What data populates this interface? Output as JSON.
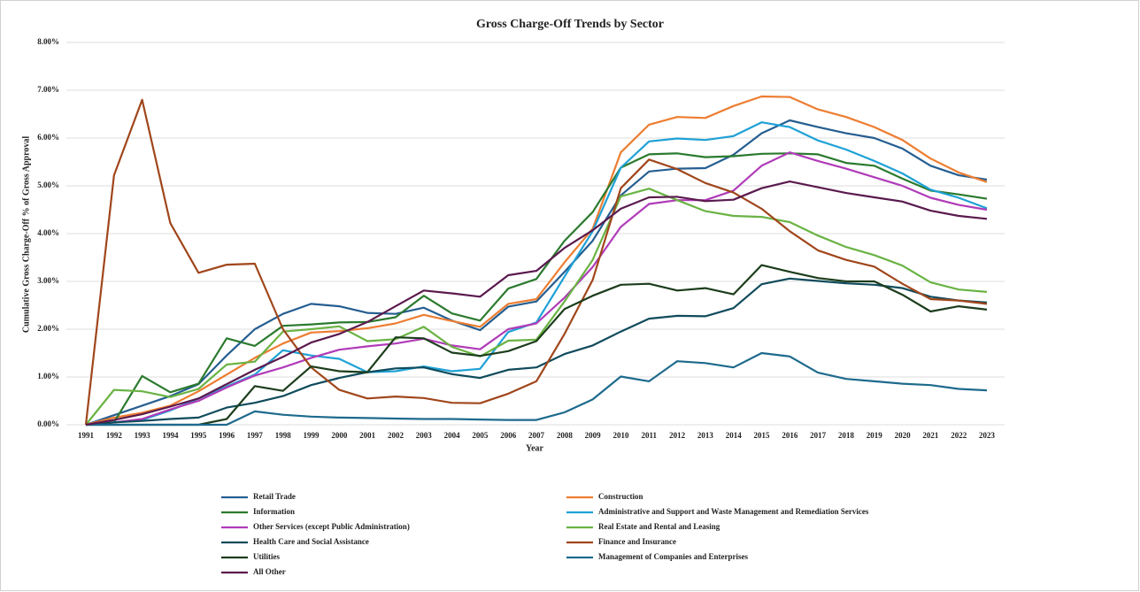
{
  "chart_data": {
    "type": "line",
    "title": "Gross Charge-Off Trends by Sector",
    "x_label": "Year",
    "y_label": "Cumulative Gross Charge-Off % of Gross Approval",
    "categories": [
      "1991",
      "1992",
      "1993",
      "1994",
      "1995",
      "1996",
      "1997",
      "1998",
      "1999",
      "2000",
      "2001",
      "2002",
      "2003",
      "2004",
      "2005",
      "2006",
      "2007",
      "2008",
      "2009",
      "2010",
      "2011",
      "2012",
      "2013",
      "2014",
      "2015",
      "2016",
      "2017",
      "2018",
      "2019",
      "2020",
      "2021",
      "2022",
      "2023"
    ],
    "ylim": [
      0,
      8
    ],
    "yticks": [
      {
        "value": 0,
        "label": "0.00%"
      },
      {
        "value": 1,
        "label": "1.00%"
      },
      {
        "value": 2,
        "label": "2.00%"
      },
      {
        "value": 3,
        "label": "3.00%"
      },
      {
        "value": 4,
        "label": "4.00%"
      },
      {
        "value": 5,
        "label": "5.00%"
      },
      {
        "value": 6,
        "label": "6.00%"
      },
      {
        "value": 7,
        "label": "7.00%"
      },
      {
        "value": 8,
        "label": "8.00%"
      }
    ],
    "grid": true,
    "legend": "bottom",
    "series": [
      {
        "name": "Retail Trade",
        "color": "#255e91",
        "values": [
          0,
          0.2,
          0.4,
          0.6,
          0.85,
          1.45,
          2.0,
          2.32,
          2.53,
          2.48,
          2.34,
          2.32,
          2.45,
          2.18,
          1.98,
          2.47,
          2.58,
          3.2,
          3.85,
          4.8,
          5.3,
          5.36,
          5.37,
          5.65,
          6.1,
          6.37,
          6.23,
          6.1,
          6.0,
          5.78,
          5.42,
          5.22,
          5.13
        ]
      },
      {
        "name": "Construction",
        "color": "#ed7d31",
        "values": [
          0,
          0.15,
          0.25,
          0.4,
          0.7,
          1.05,
          1.4,
          1.7,
          1.93,
          1.96,
          2.02,
          2.12,
          2.3,
          2.17,
          2.05,
          2.53,
          2.63,
          3.4,
          4.1,
          5.7,
          6.28,
          6.44,
          6.42,
          6.67,
          6.87,
          6.86,
          6.6,
          6.44,
          6.23,
          5.96,
          5.57,
          5.28,
          5.08
        ]
      },
      {
        "name": "Information",
        "color": "#2b7a2e",
        "values": [
          0,
          0.05,
          1.02,
          0.68,
          0.86,
          1.81,
          1.65,
          2.07,
          2.1,
          2.14,
          2.15,
          2.25,
          2.7,
          2.33,
          2.18,
          2.85,
          3.05,
          3.85,
          4.45,
          5.38,
          5.66,
          5.68,
          5.6,
          5.62,
          5.67,
          5.68,
          5.66,
          5.48,
          5.42,
          5.15,
          4.9,
          4.82,
          4.73
        ]
      },
      {
        "name": "Administrative and Support and Waste Management and Remediation Services",
        "color": "#1ea1d6",
        "values": [
          0,
          0.05,
          0.1,
          0.3,
          0.55,
          0.8,
          1.05,
          1.56,
          1.45,
          1.38,
          1.1,
          1.12,
          1.22,
          1.12,
          1.17,
          1.94,
          2.14,
          3.1,
          4.05,
          5.38,
          5.93,
          5.99,
          5.96,
          6.04,
          6.33,
          6.23,
          5.95,
          5.76,
          5.52,
          5.26,
          4.92,
          4.75,
          4.53
        ]
      },
      {
        "name": "Other Services (except Public Administration)",
        "color": "#b03cb8",
        "values": [
          0,
          0.05,
          0.12,
          0.32,
          0.5,
          0.78,
          1.03,
          1.2,
          1.4,
          1.57,
          1.64,
          1.7,
          1.8,
          1.66,
          1.58,
          2.0,
          2.12,
          2.66,
          3.3,
          4.14,
          4.62,
          4.7,
          4.7,
          4.9,
          5.42,
          5.7,
          5.52,
          5.36,
          5.18,
          5.0,
          4.75,
          4.6,
          4.5
        ]
      },
      {
        "name": "Real Estate and Rental and Leasing",
        "color": "#6ab344",
        "values": [
          0,
          0.73,
          0.7,
          0.58,
          0.75,
          1.26,
          1.32,
          1.95,
          2.0,
          2.06,
          1.75,
          1.79,
          2.05,
          1.63,
          1.43,
          1.76,
          1.78,
          2.58,
          3.45,
          4.78,
          4.94,
          4.7,
          4.47,
          4.37,
          4.35,
          4.24,
          3.96,
          3.72,
          3.55,
          3.33,
          2.98,
          2.83,
          2.78
        ]
      },
      {
        "name": "Health Care and Social Assistance",
        "color": "#0f4b5c",
        "values": [
          0,
          0.05,
          0.08,
          0.12,
          0.15,
          0.36,
          0.46,
          0.6,
          0.83,
          0.98,
          1.1,
          1.18,
          1.2,
          1.06,
          0.98,
          1.15,
          1.2,
          1.48,
          1.66,
          1.95,
          2.22,
          2.28,
          2.27,
          2.44,
          2.94,
          3.06,
          3.01,
          2.96,
          2.93,
          2.86,
          2.68,
          2.6,
          2.56
        ]
      },
      {
        "name": "Finance and Insurance",
        "color": "#a0461b",
        "values": [
          0,
          5.22,
          6.8,
          4.22,
          3.18,
          3.35,
          3.37,
          2.0,
          1.2,
          0.73,
          0.55,
          0.59,
          0.56,
          0.46,
          0.45,
          0.65,
          0.91,
          1.9,
          3.03,
          4.95,
          5.55,
          5.35,
          5.06,
          4.86,
          4.52,
          4.05,
          3.65,
          3.45,
          3.31,
          2.95,
          2.63,
          2.6,
          2.53
        ]
      },
      {
        "name": "Utilities",
        "color": "#1c3d1c",
        "values": [
          0,
          0,
          0,
          0,
          0,
          0.12,
          0.81,
          0.71,
          1.22,
          1.12,
          1.1,
          1.83,
          1.81,
          1.51,
          1.44,
          1.54,
          1.75,
          2.42,
          2.7,
          2.93,
          2.95,
          2.81,
          2.86,
          2.73,
          3.34,
          3.2,
          3.07,
          3.0,
          3.0,
          2.72,
          2.37,
          2.48,
          2.41
        ]
      },
      {
        "name": "Management of Companies and Enterprises",
        "color": "#1d6a8c",
        "values": [
          0,
          0,
          0,
          0,
          0,
          0,
          0.28,
          0.21,
          0.17,
          0.15,
          0.14,
          0.13,
          0.12,
          0.12,
          0.11,
          0.1,
          0.1,
          0.26,
          0.53,
          1.01,
          0.91,
          1.33,
          1.29,
          1.2,
          1.5,
          1.43,
          1.09,
          0.96,
          0.91,
          0.86,
          0.83,
          0.75,
          0.72
        ]
      },
      {
        "name": "All Other",
        "color": "#5a1a4e",
        "values": [
          0,
          0.1,
          0.22,
          0.38,
          0.55,
          0.85,
          1.15,
          1.42,
          1.72,
          1.9,
          2.15,
          2.48,
          2.81,
          2.75,
          2.68,
          3.13,
          3.22,
          3.7,
          4.07,
          4.52,
          4.76,
          4.77,
          4.68,
          4.71,
          4.95,
          5.09,
          4.97,
          4.85,
          4.76,
          4.67,
          4.48,
          4.37,
          4.31
        ]
      }
    ]
  }
}
